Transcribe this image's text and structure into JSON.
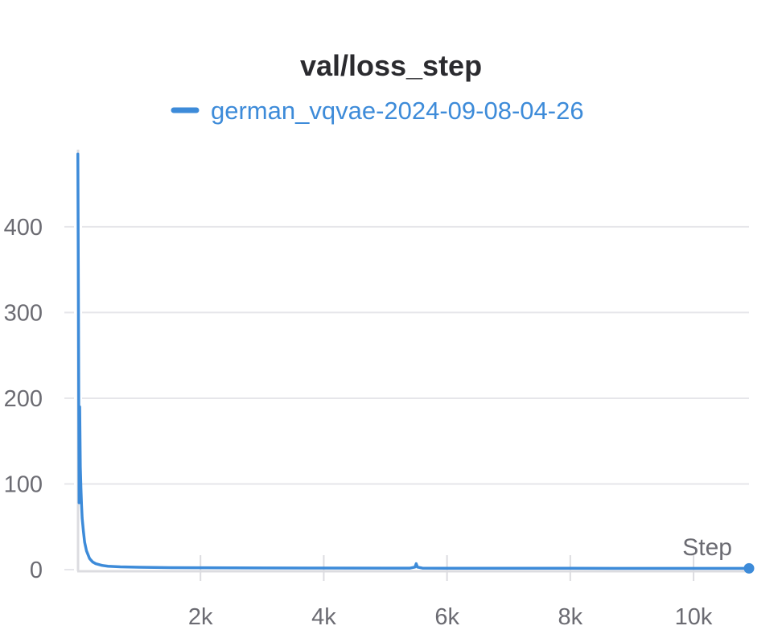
{
  "chart_data": {
    "type": "line",
    "title": "val/loss_step",
    "xlabel": "Step",
    "ylabel": "",
    "xlim": [
      0,
      10900
    ],
    "ylim": [
      0,
      490
    ],
    "x_ticks": [
      2000,
      4000,
      6000,
      8000,
      10000
    ],
    "x_tick_labels": [
      "2k",
      "4k",
      "6k",
      "8k",
      "10k"
    ],
    "y_ticks": [
      0,
      100,
      200,
      300,
      400
    ],
    "y_tick_labels": [
      "0",
      "100",
      "200",
      "300",
      "400"
    ],
    "grid": "horizontal",
    "legend_position": "top-center",
    "colors": {
      "series": "#3d8bd9",
      "grid": "#e6e6ea",
      "axis": "#dcdce0"
    },
    "series": [
      {
        "name": "german_vqvae-2024-09-08-04-26",
        "x": [
          10,
          20,
          30,
          40,
          50,
          60,
          70,
          80,
          100,
          120,
          150,
          200,
          250,
          300,
          400,
          500,
          700,
          1000,
          1500,
          2000,
          3000,
          4000,
          5000,
          5400,
          5480,
          5500,
          5520,
          5600,
          6000,
          7000,
          8000,
          9000,
          10000,
          10900
        ],
        "y": [
          485,
          300,
          78,
          190,
          120,
          95,
          75,
          60,
          45,
          32,
          22,
          13,
          9,
          7,
          5,
          4,
          3.3,
          2.8,
          2.4,
          2.2,
          2.0,
          1.9,
          1.8,
          1.8,
          3,
          7,
          3,
          1.8,
          1.7,
          1.6,
          1.6,
          1.5,
          1.5,
          1.5
        ]
      }
    ]
  }
}
